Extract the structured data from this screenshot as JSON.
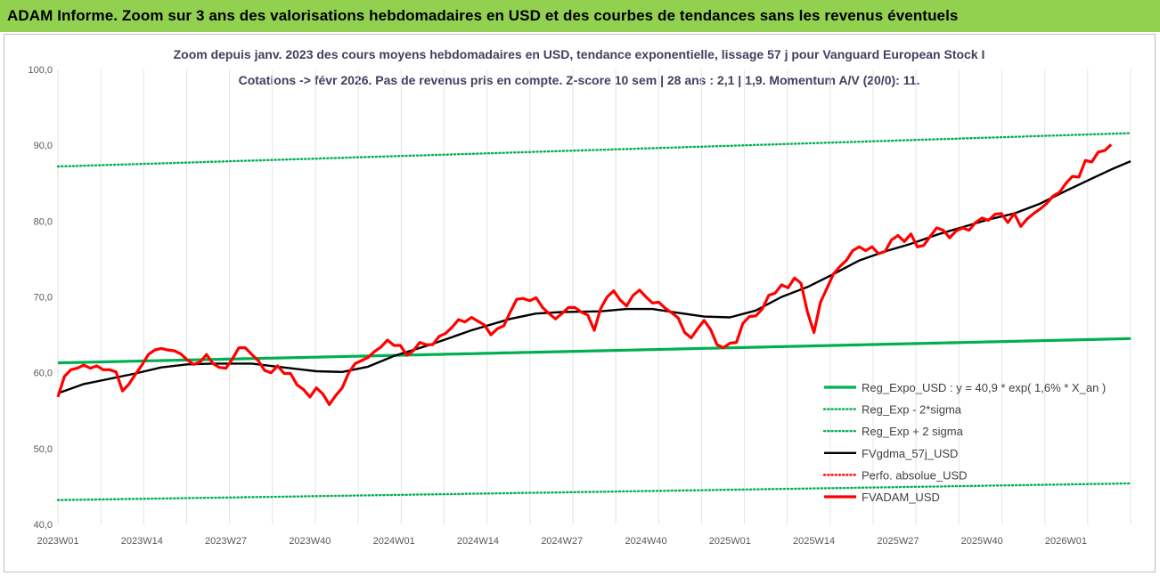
{
  "header": {
    "title": "ADAM Informe. Zoom sur 3 ans des valorisations hebdomadaires en USD et des courbes de tendances sans les revenus éventuels"
  },
  "chart_data": {
    "type": "line",
    "title_line1": "Zoom depuis janv. 2023 des cours moyens hebdomadaires en USD, tendance exponentielle, lissage 57 j pour Vanguard European Stock I",
    "title_line2": "Cotations -> févr 2026. Pas de revenus pris en compte. Z-score 10 sem | 28 ans : 2,1 | 1,9. Momentum A/V (20/0): 11.",
    "ylim": [
      40,
      100
    ],
    "y_ticks": [
      "40,0",
      "50,0",
      "60,0",
      "70,0",
      "80,0",
      "90,0",
      "100,0"
    ],
    "y_tick_values": [
      40,
      50,
      60,
      70,
      80,
      90,
      100
    ],
    "x_ticks": [
      "2023W01",
      "2023W14",
      "2023W27",
      "2023W40",
      "2024W01",
      "2024W14",
      "2024W27",
      "2024W40",
      "2025W01",
      "2025W14",
      "2025W27",
      "2025W40",
      "2026W01"
    ],
    "x_tick_index": [
      0,
      13,
      26,
      39,
      52,
      65,
      78,
      91,
      104,
      117,
      130,
      143,
      156
    ],
    "n_points": 167,
    "grid": "vertical",
    "legend_position": "bottom-right",
    "series": [
      {
        "name": "Reg_Expo_USD : y = 40,9 * exp( 1,6% *  X_an )",
        "color": "#00b050",
        "style": "solid-thick",
        "kind": "exp",
        "start": 61.3,
        "end": 64.5
      },
      {
        "name": "Reg_Exp - 2*sigma",
        "color": "#00b050",
        "style": "dotted",
        "kind": "exp",
        "start": 43.2,
        "end": 45.4
      },
      {
        "name": "Reg_Exp + 2 sigma",
        "color": "#00b050",
        "style": "dotted",
        "kind": "exp",
        "start": 87.2,
        "end": 91.6
      },
      {
        "name": "FVgdma_57j_USD",
        "color": "#000000",
        "style": "solid",
        "points": [
          [
            0,
            57.3
          ],
          [
            4,
            58.5
          ],
          [
            8,
            59.2
          ],
          [
            12,
            59.9
          ],
          [
            16,
            60.7
          ],
          [
            20,
            61.1
          ],
          [
            24,
            61.2
          ],
          [
            30,
            61.2
          ],
          [
            34,
            60.8
          ],
          [
            38,
            60.4
          ],
          [
            40,
            60.2
          ],
          [
            44,
            60.1
          ],
          [
            48,
            60.8
          ],
          [
            52,
            62.2
          ],
          [
            58,
            63.8
          ],
          [
            64,
            65.6
          ],
          [
            70,
            67.1
          ],
          [
            74,
            67.8
          ],
          [
            78,
            68.0
          ],
          [
            84,
            68.1
          ],
          [
            88,
            68.4
          ],
          [
            92,
            68.4
          ],
          [
            96,
            67.9
          ],
          [
            100,
            67.4
          ],
          [
            104,
            67.3
          ],
          [
            108,
            68.2
          ],
          [
            112,
            70.0
          ],
          [
            116,
            71.3
          ],
          [
            120,
            73.0
          ],
          [
            124,
            74.8
          ],
          [
            128,
            76.0
          ],
          [
            132,
            77.0
          ],
          [
            136,
            78.2
          ],
          [
            140,
            79.2
          ],
          [
            144,
            80.2
          ],
          [
            148,
            81.0
          ],
          [
            152,
            82.3
          ],
          [
            156,
            84.0
          ],
          [
            160,
            85.6
          ],
          [
            163,
            86.8
          ],
          [
            166,
            87.9
          ]
        ]
      },
      {
        "name": "Perfo. absolue_USD",
        "color": "#ff0000",
        "style": "dotted",
        "points": []
      },
      {
        "name": "FVADAM_USD",
        "color": "#ff0000",
        "style": "solid-thick",
        "points": [
          [
            0,
            56.8
          ],
          [
            1,
            59.5
          ],
          [
            2,
            60.4
          ],
          [
            3,
            60.6
          ],
          [
            4,
            61.0
          ],
          [
            5,
            60.6
          ],
          [
            6,
            60.9
          ],
          [
            7,
            60.4
          ],
          [
            8,
            60.4
          ],
          [
            9,
            60.1
          ],
          [
            10,
            57.6
          ],
          [
            11,
            58.5
          ],
          [
            12,
            59.8
          ],
          [
            13,
            61.0
          ],
          [
            14,
            62.4
          ],
          [
            15,
            63.0
          ],
          [
            16,
            63.2
          ],
          [
            17,
            63.0
          ],
          [
            18,
            62.9
          ],
          [
            19,
            62.5
          ],
          [
            20,
            61.7
          ],
          [
            21,
            61.1
          ],
          [
            22,
            61.4
          ],
          [
            23,
            62.4
          ],
          [
            24,
            61.2
          ],
          [
            25,
            60.7
          ],
          [
            26,
            60.6
          ],
          [
            27,
            61.8
          ],
          [
            28,
            63.3
          ],
          [
            29,
            63.3
          ],
          [
            30,
            62.4
          ],
          [
            31,
            61.6
          ],
          [
            32,
            60.3
          ],
          [
            33,
            60.0
          ],
          [
            34,
            60.9
          ],
          [
            35,
            59.9
          ],
          [
            36,
            59.9
          ],
          [
            37,
            58.4
          ],
          [
            38,
            57.8
          ],
          [
            39,
            56.8
          ],
          [
            40,
            58.0
          ],
          [
            41,
            57.2
          ],
          [
            42,
            55.8
          ],
          [
            43,
            57.0
          ],
          [
            44,
            58.0
          ],
          [
            45,
            60.0
          ],
          [
            46,
            61.2
          ],
          [
            47,
            61.6
          ],
          [
            48,
            62.0
          ],
          [
            49,
            62.8
          ],
          [
            50,
            63.4
          ],
          [
            51,
            64.3
          ],
          [
            52,
            63.6
          ],
          [
            53,
            63.6
          ],
          [
            54,
            62.3
          ],
          [
            55,
            62.9
          ],
          [
            56,
            64.0
          ],
          [
            57,
            63.7
          ],
          [
            58,
            63.7
          ],
          [
            59,
            64.8
          ],
          [
            60,
            65.2
          ],
          [
            61,
            66.0
          ],
          [
            62,
            67.0
          ],
          [
            63,
            66.7
          ],
          [
            64,
            67.3
          ],
          [
            65,
            66.8
          ],
          [
            66,
            66.3
          ],
          [
            67,
            65.0
          ],
          [
            68,
            65.8
          ],
          [
            69,
            66.2
          ],
          [
            70,
            68.0
          ],
          [
            71,
            69.7
          ],
          [
            72,
            69.8
          ],
          [
            73,
            69.5
          ],
          [
            74,
            69.9
          ],
          [
            75,
            68.6
          ],
          [
            76,
            67.8
          ],
          [
            77,
            67.1
          ],
          [
            78,
            67.8
          ],
          [
            79,
            68.6
          ],
          [
            80,
            68.6
          ],
          [
            81,
            68.0
          ],
          [
            82,
            67.6
          ],
          [
            83,
            65.6
          ],
          [
            84,
            68.5
          ],
          [
            85,
            70.0
          ],
          [
            86,
            70.8
          ],
          [
            87,
            69.6
          ],
          [
            88,
            68.8
          ],
          [
            89,
            70.2
          ],
          [
            90,
            70.9
          ],
          [
            91,
            70.0
          ],
          [
            92,
            69.2
          ],
          [
            93,
            69.3
          ],
          [
            94,
            68.5
          ],
          [
            95,
            67.9
          ],
          [
            96,
            67.2
          ],
          [
            97,
            65.3
          ],
          [
            98,
            64.6
          ],
          [
            99,
            65.8
          ],
          [
            100,
            66.9
          ],
          [
            101,
            65.7
          ],
          [
            102,
            63.7
          ],
          [
            103,
            63.3
          ],
          [
            104,
            63.9
          ],
          [
            105,
            64.0
          ],
          [
            106,
            66.5
          ],
          [
            107,
            67.4
          ],
          [
            108,
            67.5
          ],
          [
            109,
            68.4
          ],
          [
            110,
            70.2
          ],
          [
            111,
            70.5
          ],
          [
            112,
            71.6
          ],
          [
            113,
            71.2
          ],
          [
            114,
            72.5
          ],
          [
            115,
            71.8
          ],
          [
            116,
            68.0
          ],
          [
            117,
            65.3
          ],
          [
            118,
            69.3
          ],
          [
            119,
            71.1
          ],
          [
            120,
            73.0
          ],
          [
            121,
            74.0
          ],
          [
            122,
            74.8
          ],
          [
            123,
            76.1
          ],
          [
            124,
            76.6
          ],
          [
            125,
            76.1
          ],
          [
            126,
            76.6
          ],
          [
            127,
            75.7
          ],
          [
            128,
            76.0
          ],
          [
            129,
            77.5
          ],
          [
            130,
            78.1
          ],
          [
            131,
            77.3
          ],
          [
            132,
            78.3
          ],
          [
            133,
            76.6
          ],
          [
            134,
            76.8
          ],
          [
            135,
            78.0
          ],
          [
            136,
            79.1
          ],
          [
            137,
            78.8
          ],
          [
            138,
            77.8
          ],
          [
            139,
            78.7
          ],
          [
            140,
            79.1
          ],
          [
            141,
            78.8
          ],
          [
            142,
            79.8
          ],
          [
            143,
            80.4
          ],
          [
            144,
            80.1
          ],
          [
            145,
            80.9
          ],
          [
            146,
            81.0
          ],
          [
            147,
            79.8
          ],
          [
            148,
            81.0
          ],
          [
            149,
            79.3
          ],
          [
            150,
            80.3
          ],
          [
            151,
            81.0
          ],
          [
            152,
            81.6
          ],
          [
            153,
            82.3
          ],
          [
            154,
            83.3
          ],
          [
            155,
            83.8
          ],
          [
            156,
            85.0
          ],
          [
            157,
            85.9
          ],
          [
            158,
            85.8
          ],
          [
            159,
            88.0
          ],
          [
            160,
            87.8
          ],
          [
            161,
            89.1
          ],
          [
            162,
            89.3
          ],
          [
            163,
            90.1
          ]
        ]
      }
    ]
  }
}
